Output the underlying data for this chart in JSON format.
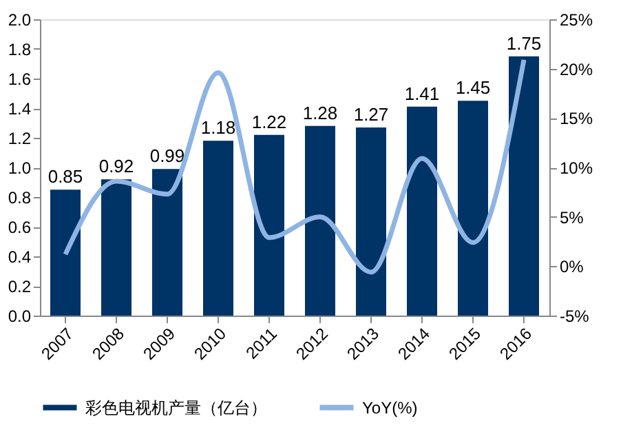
{
  "chart_data": {
    "type": "bar",
    "categories": [
      "2007",
      "2008",
      "2009",
      "2010",
      "2011",
      "2012",
      "2013",
      "2014",
      "2015",
      "2016"
    ],
    "series": [
      {
        "name": "彩色电视机产量（亿台）",
        "type": "bar",
        "color": "#003366",
        "values": [
          0.85,
          0.92,
          0.99,
          1.18,
          1.22,
          1.28,
          1.27,
          1.41,
          1.45,
          1.75
        ],
        "value_labels": [
          "0.85",
          "0.92",
          "0.99",
          "1.18",
          "1.22",
          "1.28",
          "1.27",
          "1.41",
          "1.45",
          "1.75"
        ]
      },
      {
        "name": "YoY(%)",
        "type": "line",
        "axis": "y2",
        "color": "#8eb4e3",
        "values": [
          1.2,
          8.6,
          7.3,
          19.6,
          2.9,
          5.0,
          -0.6,
          10.9,
          2.4,
          20.9
        ]
      }
    ],
    "ylim": [
      0,
      2.0
    ],
    "yticks": [
      {
        "value": 0,
        "label": "0.0"
      },
      {
        "value": 0.2,
        "label": "0.2"
      },
      {
        "value": 0.4,
        "label": "0.4"
      },
      {
        "value": 0.6,
        "label": "0.6"
      },
      {
        "value": 0.8,
        "label": "0.8"
      },
      {
        "value": 1,
        "label": "1.0"
      },
      {
        "value": 1.2,
        "label": "1.2"
      },
      {
        "value": 1.4,
        "label": "1.4"
      },
      {
        "value": 1.6,
        "label": "1.6"
      },
      {
        "value": 1.8,
        "label": "1.8"
      },
      {
        "value": 2,
        "label": "2.0"
      }
    ],
    "y2lim": [
      -5,
      25
    ],
    "y2ticks": [
      {
        "value": -5,
        "label": "-5%"
      },
      {
        "value": 0,
        "label": "0%"
      },
      {
        "value": 5,
        "label": "5%"
      },
      {
        "value": 10,
        "label": "10%"
      },
      {
        "value": 15,
        "label": "15%"
      },
      {
        "value": 20,
        "label": "20%"
      },
      {
        "value": 25,
        "label": "25%"
      }
    ],
    "grid": false,
    "legend": "bottom",
    "marker": "none",
    "line_style": "solid"
  }
}
